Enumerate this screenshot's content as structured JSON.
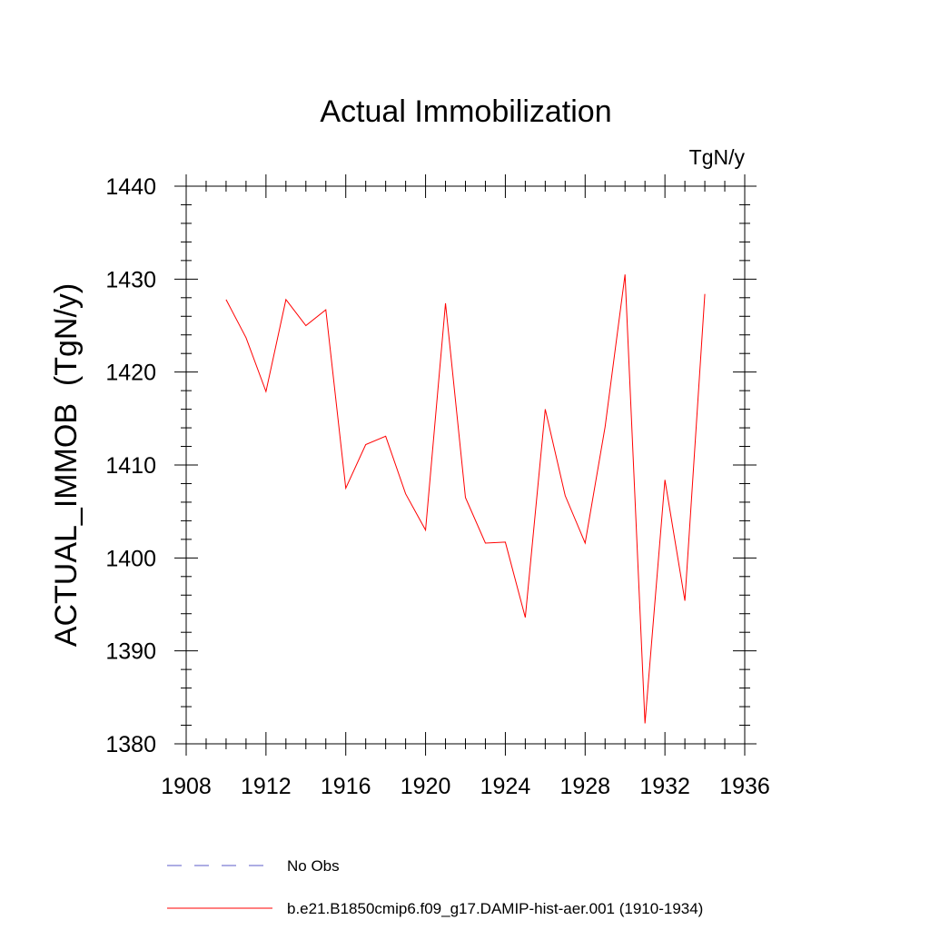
{
  "chart_data": {
    "type": "line",
    "title": "Actual Immobilization",
    "units_label": "TgN/y",
    "ylabel": "ACTUAL_IMMOB  (TgN/y)",
    "xlabel": "",
    "xlim": [
      1908,
      1936
    ],
    "ylim": [
      1380,
      1440
    ],
    "x_ticks": [
      1908,
      1912,
      1916,
      1920,
      1924,
      1928,
      1932,
      1936
    ],
    "y_ticks": [
      1380,
      1390,
      1400,
      1410,
      1420,
      1430,
      1440
    ],
    "x_tick_labels": [
      "1908",
      "1912",
      "1916",
      "1920",
      "1924",
      "1928",
      "1932",
      "1936"
    ],
    "y_tick_labels": [
      "1380",
      "1390",
      "1400",
      "1410",
      "1420",
      "1430",
      "1440"
    ],
    "grid": false,
    "legend_position": "bottom",
    "series": [
      {
        "name": "b.e21.B1850cmip6.f09_g17.DAMIP-hist-aer.001 (1910-1934)",
        "color": "#ff0000",
        "style": "solid",
        "x": [
          1910,
          1911,
          1912,
          1913,
          1914,
          1915,
          1916,
          1917,
          1918,
          1919,
          1920,
          1921,
          1922,
          1923,
          1924,
          1925,
          1926,
          1927,
          1928,
          1929,
          1930,
          1931,
          1932,
          1933,
          1934
        ],
        "y": [
          1427.8,
          1423.7,
          1417.9,
          1427.8,
          1425.0,
          1426.7,
          1407.5,
          1412.2,
          1413.1,
          1406.9,
          1403.0,
          1427.4,
          1406.5,
          1401.6,
          1401.7,
          1393.6,
          1416.0,
          1406.7,
          1401.6,
          1414.1,
          1430.5,
          1382.2,
          1408.4,
          1395.4,
          1428.4
        ]
      }
    ],
    "legend": [
      {
        "label": "No Obs",
        "color": "#5b5bc8",
        "style": "dashed"
      },
      {
        "label": "b.e21.B1850cmip6.f09_g17.DAMIP-hist-aer.001 (1910-1934)",
        "color": "#ff0000",
        "style": "solid"
      }
    ]
  }
}
